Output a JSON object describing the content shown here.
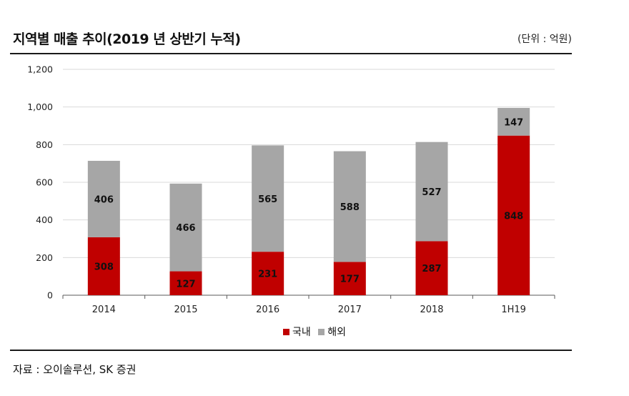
{
  "header": {
    "title": "지역별 매출 추이(2019 년 상반기 누적)",
    "unit": "(단위 : 억원)"
  },
  "footer": {
    "source": "자료 : 오이솔루션, SK 증권"
  },
  "colors": {
    "domestic": "#c00000",
    "overseas": "#a6a6a6",
    "grid": "#d9d9d9",
    "axis": "#595959"
  },
  "chart_data": {
    "type": "bar",
    "stacked": true,
    "title": "지역별 매출 추이(2019 년 상반기 누적)",
    "categories": [
      "2014",
      "2015",
      "2016",
      "2017",
      "2018",
      "1H19"
    ],
    "series": [
      {
        "name": "국내",
        "values": [
          308,
          127,
          231,
          177,
          287,
          848
        ]
      },
      {
        "name": "해외",
        "values": [
          406,
          466,
          565,
          588,
          527,
          147
        ]
      }
    ],
    "yticks": [
      "0",
      "200",
      "400",
      "600",
      "800",
      "1,000",
      "1,200"
    ],
    "ylim": [
      0,
      1200
    ],
    "xlabel": "",
    "ylabel": "",
    "legend_position": "bottom",
    "grid": true
  }
}
